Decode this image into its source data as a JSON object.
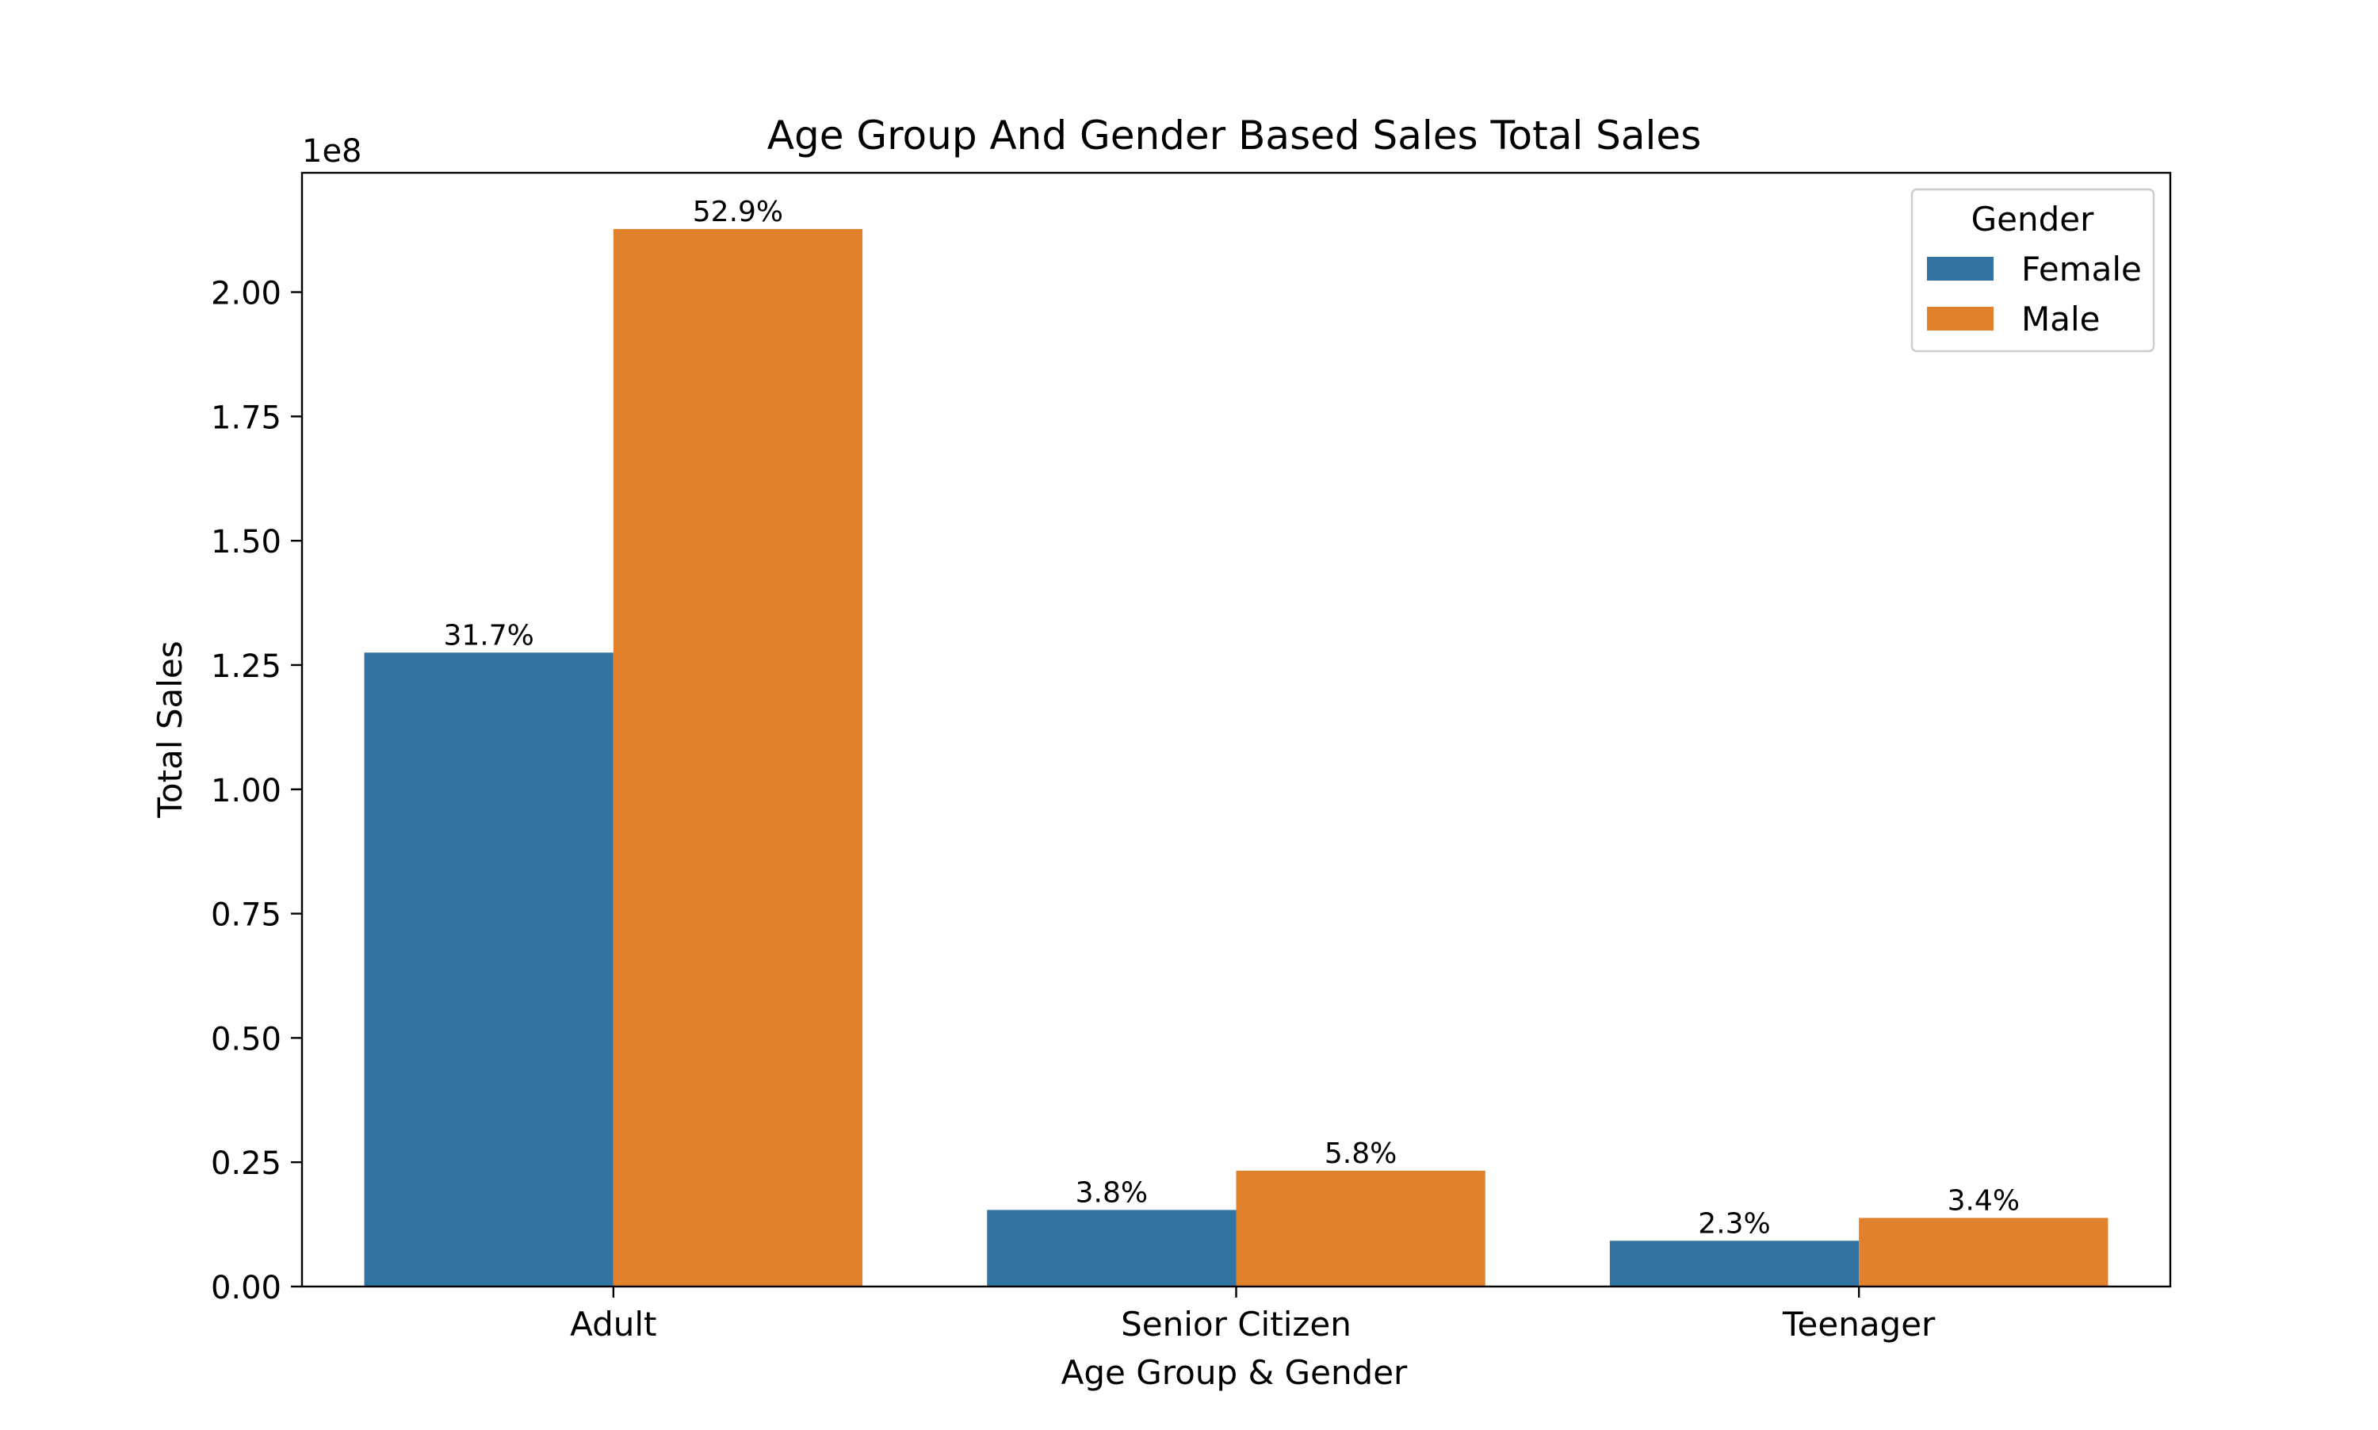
{
  "chart_data": {
    "type": "bar",
    "title": "Age Group And Gender Based Sales Total Sales",
    "xlabel": "Age Group & Gender",
    "ylabel": "Total Sales",
    "y_offset_label": "1e8",
    "y_scale": 100000000,
    "ylim": [
      0,
      224000000
    ],
    "yticks": [
      0,
      25000000,
      50000000,
      75000000,
      100000000,
      125000000,
      150000000,
      175000000,
      200000000
    ],
    "ytick_labels": [
      "0.00",
      "0.25",
      "0.50",
      "0.75",
      "1.00",
      "1.25",
      "1.50",
      "1.75",
      "2.00"
    ],
    "categories": [
      "Adult",
      "Senior Citizen",
      "Teenager"
    ],
    "series": [
      {
        "name": "Female",
        "color": "#3274a1",
        "values": [
          127500000,
          15400000,
          9200000
        ],
        "labels": [
          "31.7%",
          "3.8%",
          "2.3%"
        ]
      },
      {
        "name": "Male",
        "color": "#e1812c",
        "values": [
          212700000,
          23300000,
          13800000
        ],
        "labels": [
          "52.9%",
          "5.8%",
          "3.4%"
        ]
      }
    ],
    "legend": {
      "title": "Gender",
      "placement": "top-right"
    },
    "grid": false
  }
}
